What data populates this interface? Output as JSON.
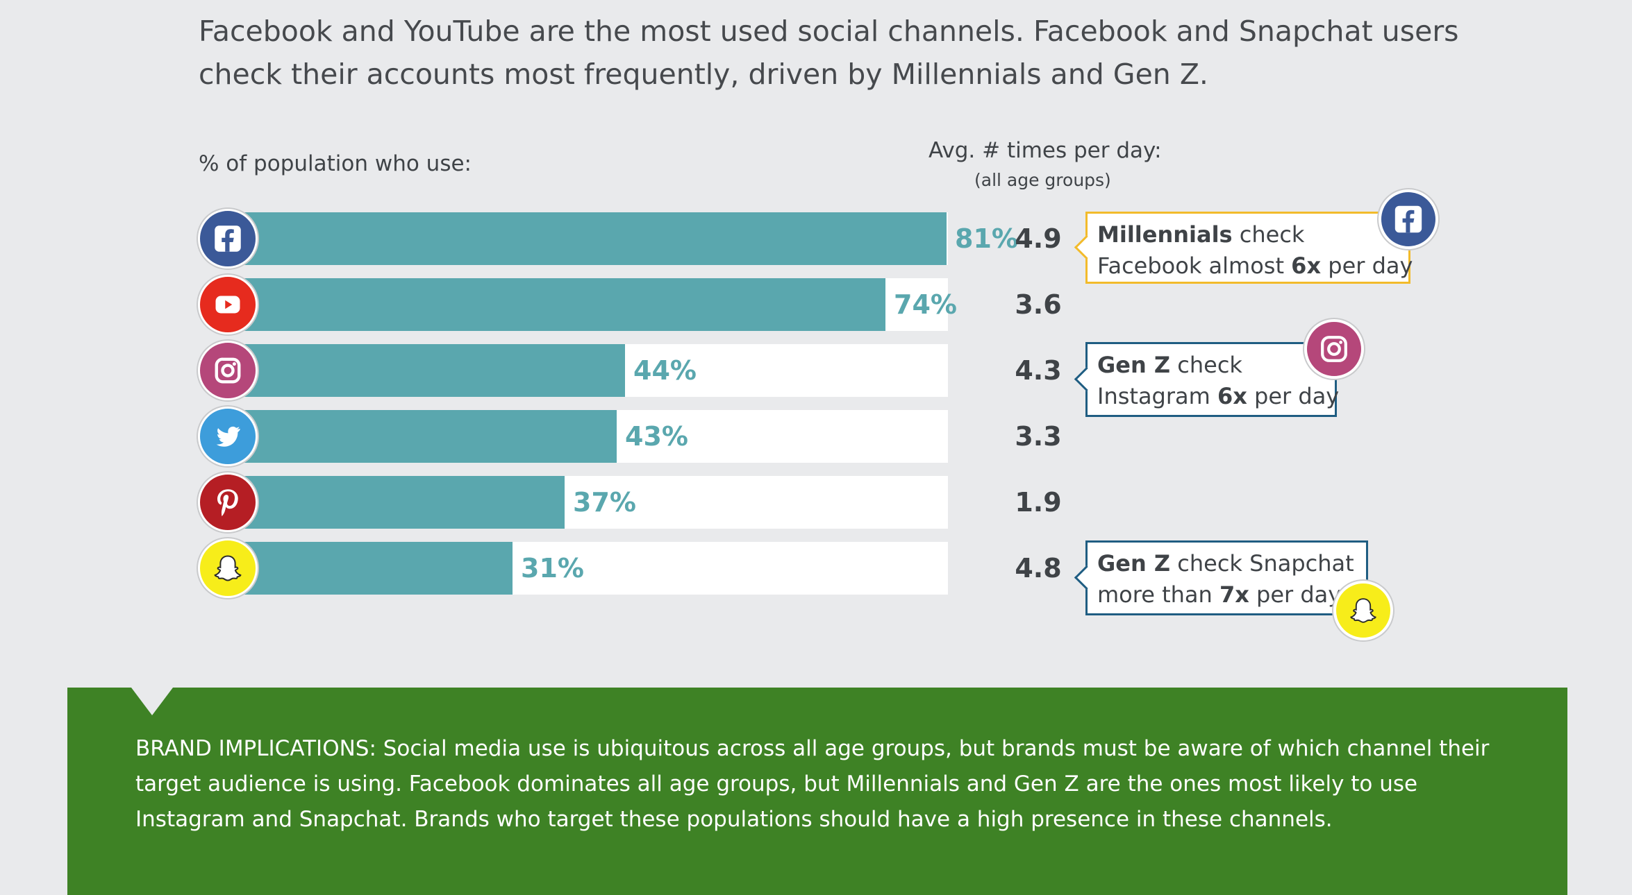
{
  "headline": "Facebook and YouTube are the most used social channels. Facebook and Snapchat users check their accounts most frequently, driven by Millennials and Gen Z.",
  "left_label": "% of population who use:",
  "right_label": "Avg. # times per day:",
  "right_sublabel": "(all age groups)",
  "chart_data": {
    "type": "bar",
    "orientation": "horizontal",
    "categories": [
      "Facebook",
      "YouTube",
      "Instagram",
      "Twitter",
      "Pinterest",
      "Snapchat"
    ],
    "series": [
      {
        "values": [
          81,
          74,
          44,
          43,
          37,
          31
        ]
      },
      {
        "values": [
          4.9,
          3.6,
          4.3,
          3.3,
          1.9,
          4.8
        ]
      }
    ],
    "value_labels": [
      "81%",
      "74%",
      "44%",
      "43%",
      "37%",
      "31%"
    ],
    "avg_labels": [
      "4.9",
      "3.6",
      "4.3",
      "3.3",
      "1.9",
      "4.8"
    ],
    "xlim": [
      0,
      100
    ],
    "bar_color": "#5aa7ae",
    "icon_colors": [
      "#3b5998",
      "#e62b1e",
      "#b5477a",
      "#3d9ddb",
      "#b51e24",
      "#f7ed1a"
    ],
    "icons": [
      "facebook-icon",
      "youtube-icon",
      "instagram-icon",
      "twitter-icon",
      "pinterest-icon",
      "snapchat-icon"
    ]
  },
  "callouts": {
    "facebook": {
      "bold1": "Millennials",
      "text1": " check",
      "text2": "Facebook almost ",
      "bold2": "6x",
      "text3": " per day"
    },
    "instagram": {
      "bold1": "Gen Z",
      "text1": " check",
      "text2": "Instagram ",
      "bold2": "6x",
      "text3": " per day"
    },
    "snapchat": {
      "bold1": "Gen Z",
      "text1": " check Snapchat",
      "text2": "more than ",
      "bold2": "7x",
      "text3": " per day"
    }
  },
  "brand_implications": "BRAND IMPLICATIONS:  Social media use is ubiquitous across all age groups, but brands must be aware of which channel their target audience is using. Facebook dominates all age groups, but Millennials and Gen Z are the ones most likely to use Instagram and Snapchat. Brands who target these populations should have a high presence in these channels."
}
